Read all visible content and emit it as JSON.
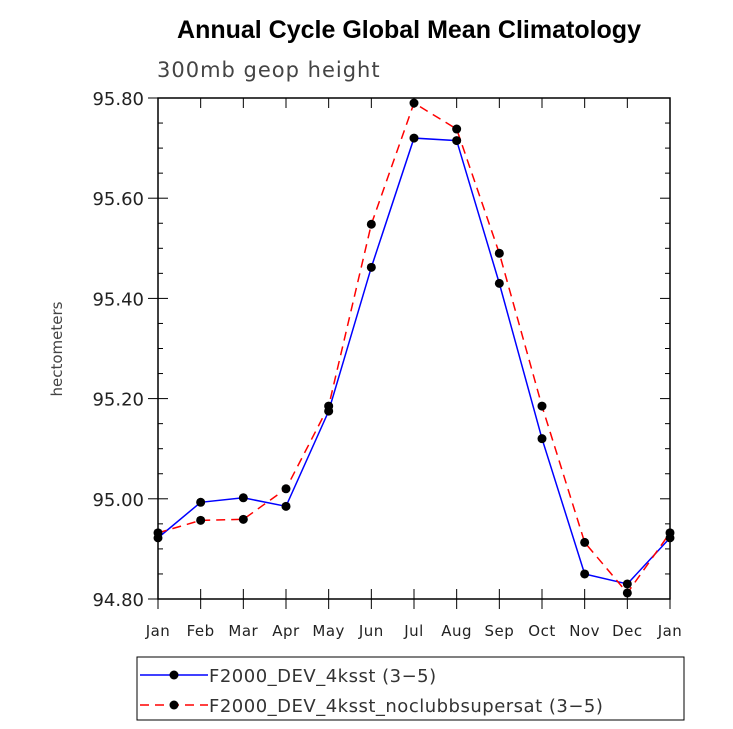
{
  "chart_data": {
    "type": "line",
    "title": "Annual Cycle Global Mean Climatology",
    "subtitle": "300mb geop height",
    "xlabel": "",
    "ylabel": "hectometers",
    "categories": [
      "Jan",
      "Feb",
      "Mar",
      "Apr",
      "May",
      "Jun",
      "Jul",
      "Aug",
      "Sep",
      "Oct",
      "Nov",
      "Dec",
      "Jan"
    ],
    "ylim": [
      94.8,
      95.8
    ],
    "yticks": [
      "94.80",
      "95.00",
      "95.20",
      "95.40",
      "95.60",
      "95.80"
    ],
    "grid": false,
    "legend_position": "bottom",
    "series": [
      {
        "name": "F2000_DEV_4ksst (3−5)",
        "color": "#0000ff",
        "line_style": "solid",
        "values": [
          94.922,
          94.993,
          95.002,
          94.985,
          95.175,
          95.462,
          95.72,
          95.715,
          95.43,
          95.12,
          94.85,
          94.83,
          94.922
        ]
      },
      {
        "name": "F2000_DEV_4ksst_noclubbsupersat (3−5)",
        "color": "#ff0000",
        "line_style": "dashed",
        "values": [
          94.932,
          94.957,
          94.959,
          95.02,
          95.185,
          95.548,
          95.79,
          95.738,
          95.49,
          95.185,
          94.913,
          94.812,
          94.932
        ]
      }
    ]
  }
}
